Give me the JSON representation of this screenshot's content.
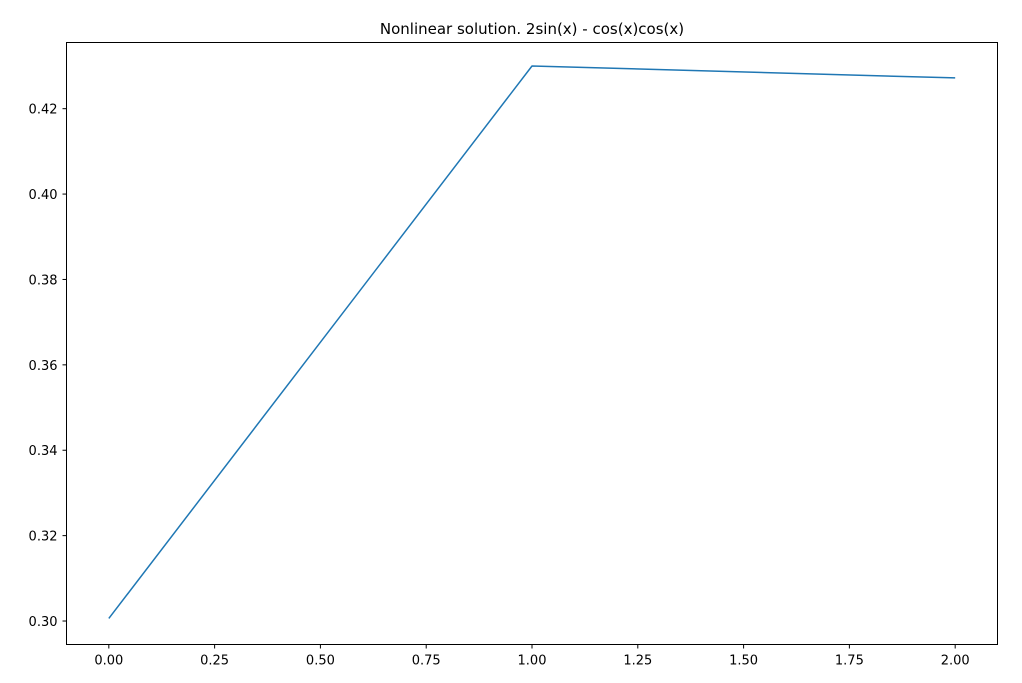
{
  "chart_data": {
    "type": "line",
    "title": "Nonlinear solution. 2sin(x) - cos(x)cos(x)",
    "xlabel": "",
    "ylabel": "",
    "xlim": [
      -0.1,
      2.1
    ],
    "ylim": [
      0.2945,
      0.4355
    ],
    "x_ticks": [
      0.0,
      0.25,
      0.5,
      0.75,
      1.0,
      1.25,
      1.5,
      1.75,
      2.0
    ],
    "x_tick_labels": [
      "0.00",
      "0.25",
      "0.50",
      "0.75",
      "1.00",
      "1.25",
      "1.50",
      "1.75",
      "2.00"
    ],
    "y_ticks": [
      0.3,
      0.32,
      0.34,
      0.36,
      0.38,
      0.4,
      0.42
    ],
    "y_tick_labels": [
      "0.30",
      "0.32",
      "0.34",
      "0.36",
      "0.38",
      "0.40",
      "0.42"
    ],
    "grid": false,
    "series": [
      {
        "color": "#1f77b4",
        "x": [
          0,
          1,
          2
        ],
        "y": [
          0.3006,
          0.43,
          0.4272
        ]
      }
    ]
  }
}
